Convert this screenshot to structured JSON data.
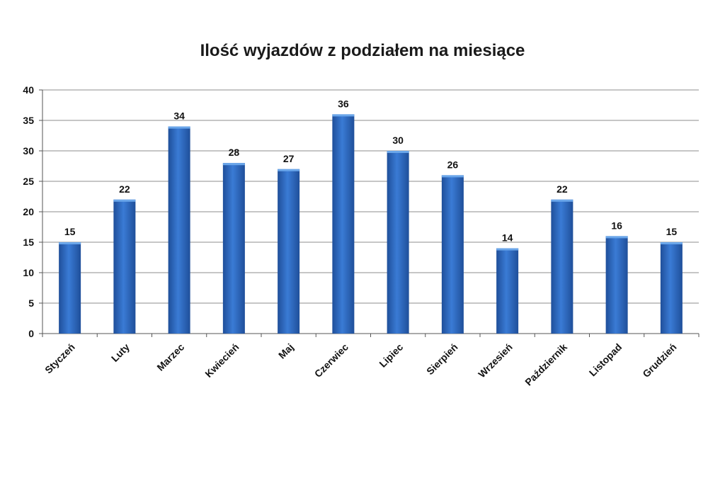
{
  "chart_data": {
    "type": "bar",
    "title": "Ilość wyjazdów z podziałem na miesiące",
    "xlabel": "",
    "ylabel": "",
    "categories": [
      "Styczeń",
      "Luty",
      "Marzec",
      "Kwiecień",
      "Maj",
      "Czerwiec",
      "Lipiec",
      "Sierpień",
      "Wrzesień",
      "Październik",
      "Listopad",
      "Grudzień"
    ],
    "values": [
      15,
      22,
      34,
      28,
      27,
      36,
      30,
      26,
      14,
      22,
      16,
      15
    ],
    "data_labels": [
      "15",
      "22",
      "34",
      "28",
      "27",
      "36",
      "30",
      "26",
      "14",
      "22",
      "16",
      "15"
    ],
    "ylim": [
      0,
      40
    ],
    "yticks": [
      0,
      5,
      10,
      15,
      20,
      25,
      30,
      35,
      40
    ],
    "ytick_labels": [
      "0",
      "5",
      "10",
      "15",
      "20",
      "25",
      "30",
      "35",
      "40"
    ],
    "grid": true,
    "legend": "none",
    "bar_color": "#3a7bd5",
    "bar_color_dark": "#1f4f9a",
    "grid_color": "#8c8c8c"
  }
}
